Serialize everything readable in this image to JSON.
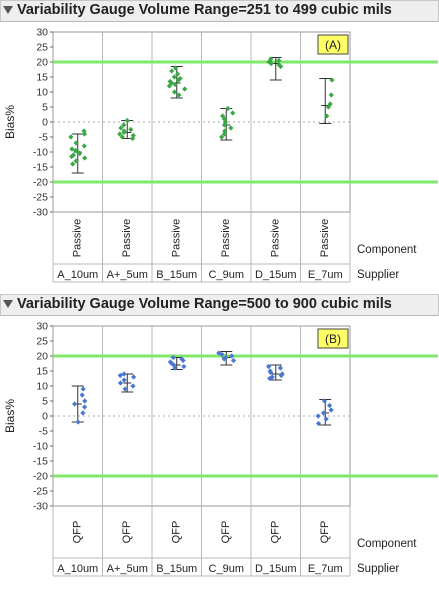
{
  "panels": [
    {
      "title": "Variability Gauge Volume Range=251 to 499 cubic mils",
      "badge": "(A)"
    },
    {
      "title": "Variability Gauge Volume Range=500 to 900 cubic mils",
      "badge": "(B)"
    }
  ],
  "chart_data": [
    {
      "type": "scatter",
      "title": "Variability Gauge Volume Range=251 to 499 cubic mils",
      "ylabel": "Bias%",
      "ylim": [
        -30,
        30
      ],
      "yticks": [
        30,
        25,
        20,
        15,
        10,
        5,
        0,
        -5,
        -10,
        -15,
        -20,
        -25,
        -30
      ],
      "reference_lines": {
        "upper": 20,
        "lower": -20,
        "zero": 0
      },
      "row_labels": [
        "Component",
        "Supplier"
      ],
      "point_color": "#3aa845",
      "categories": [
        {
          "component": "Passive",
          "supplier": "A_10um",
          "mean": -10,
          "min": -17,
          "max": -4,
          "points": [
            -3,
            -4,
            -5,
            -7,
            -8,
            -9,
            -9.5,
            -10,
            -10.5,
            -11,
            -11.5,
            -12,
            -13,
            -14
          ]
        },
        {
          "component": "Passive",
          "supplier": "A+_5um",
          "mean": -3.5,
          "min": -5.5,
          "max": 0.5,
          "points": [
            0.5,
            -1,
            -2,
            -2.5,
            -3,
            -3.5,
            -4,
            -4.5,
            -5,
            -5.5
          ]
        },
        {
          "component": "Passive",
          "supplier": "B_15um",
          "mean": 13,
          "min": 8,
          "max": 18.5,
          "points": [
            18,
            17,
            16,
            15,
            14.5,
            14,
            13.5,
            13,
            12.5,
            12,
            11,
            10,
            9
          ]
        },
        {
          "component": "Passive",
          "supplier": "C_9um",
          "mean": -1,
          "min": -6,
          "max": 4.5,
          "points": [
            4.5,
            3,
            2,
            1,
            0,
            -1,
            -2,
            -3,
            -4,
            -5
          ]
        },
        {
          "component": "Passive",
          "supplier": "D_15um",
          "mean": 19.5,
          "min": 14,
          "max": 21.5,
          "points": [
            21,
            20.5,
            20,
            19.5,
            19,
            18.5
          ]
        },
        {
          "component": "Passive",
          "supplier": "E_7um",
          "mean": 5.5,
          "min": -0.5,
          "max": 14.5,
          "points": [
            14,
            9,
            6,
            5,
            2
          ]
        }
      ]
    },
    {
      "type": "scatter",
      "title": "Variability Gauge Volume Range=500 to 900 cubic mils",
      "ylabel": "Bias%",
      "ylim": [
        -30,
        30
      ],
      "yticks": [
        30,
        25,
        20,
        15,
        10,
        5,
        0,
        -5,
        -10,
        -15,
        -20,
        -25,
        -30
      ],
      "reference_lines": {
        "upper": 20,
        "lower": -20,
        "zero": 0
      },
      "row_labels": [
        "Component",
        "Supplier"
      ],
      "point_color": "#4a78cf",
      "categories": [
        {
          "component": "QFP",
          "supplier": "A_10um",
          "mean": 4,
          "min": -2,
          "max": 10,
          "points": [
            9,
            7,
            5,
            4,
            3,
            1,
            -2
          ]
        },
        {
          "component": "QFP",
          "supplier": "A+_5um",
          "mean": 11,
          "min": 8,
          "max": 14,
          "points": [
            14,
            13.5,
            13,
            12,
            11,
            10,
            9
          ]
        },
        {
          "component": "QFP",
          "supplier": "B_15um",
          "mean": 17,
          "min": 15.5,
          "max": 19.5,
          "points": [
            19.5,
            19,
            18.5,
            18,
            17.5,
            17,
            16.5,
            16
          ]
        },
        {
          "component": "QFP",
          "supplier": "C_9um",
          "mean": 19.5,
          "min": 17,
          "max": 21.5,
          "points": [
            21,
            20.5,
            20,
            19.5,
            19,
            18.5
          ]
        },
        {
          "component": "QFP",
          "supplier": "D_15um",
          "mean": 14,
          "min": 12,
          "max": 17,
          "points": [
            16.5,
            16,
            15,
            14.5,
            14,
            13.5,
            13,
            12.5
          ]
        },
        {
          "component": "QFP",
          "supplier": "E_7um",
          "mean": 1,
          "min": -3,
          "max": 5.5,
          "points": [
            5,
            3.5,
            2,
            1,
            0,
            -1,
            -2.5
          ]
        }
      ]
    }
  ]
}
